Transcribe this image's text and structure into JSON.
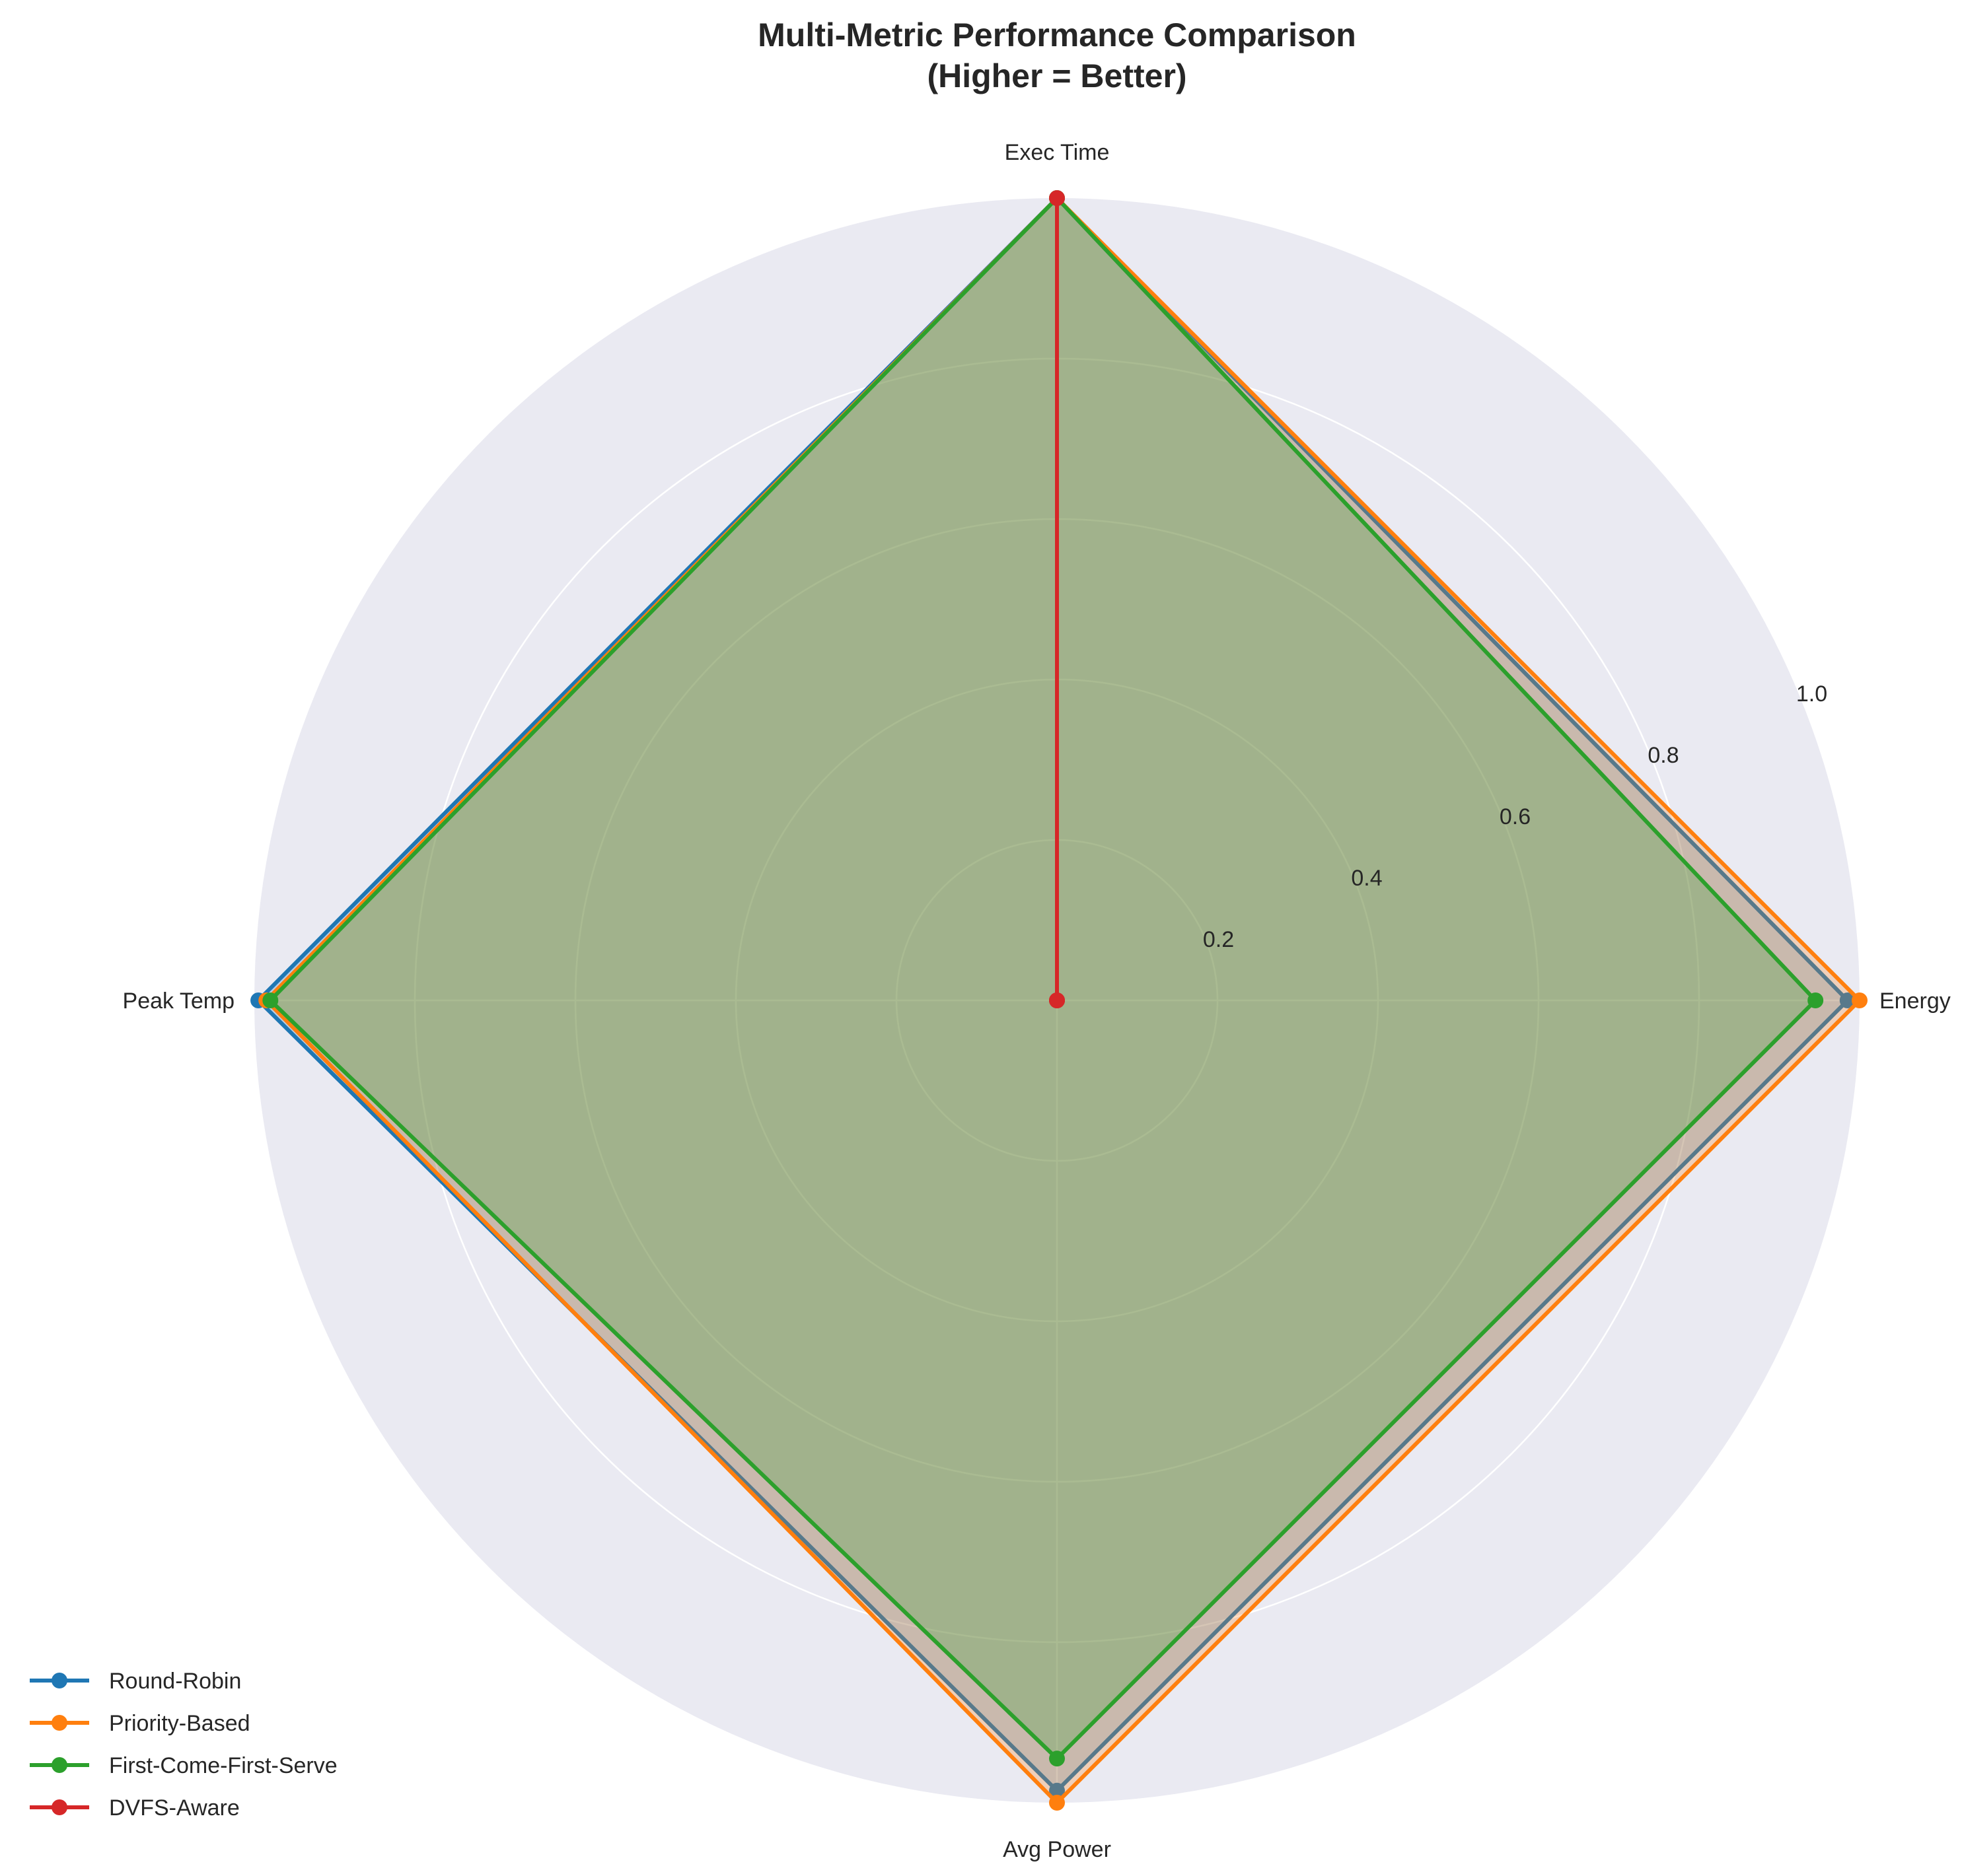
{
  "chart_data": {
    "type": "radar",
    "title": "Multi-Metric Performance Comparison",
    "subtitle": "(Higher = Better)",
    "axes": [
      "Exec Time",
      "Energy",
      "Avg Power",
      "Peak Temp"
    ],
    "rlim": [
      0,
      1.0
    ],
    "rticks": [
      0.2,
      0.4,
      0.6,
      0.8,
      1.0
    ],
    "rtick_labels": [
      "0.2",
      "0.4",
      "0.6",
      "0.8",
      "1.0"
    ],
    "grid": true,
    "legend_position": "lower-left",
    "series": [
      {
        "name": "Round-Robin",
        "color": "#1f77b4",
        "values": [
          1.0,
          0.985,
          0.985,
          0.995
        ]
      },
      {
        "name": "Priority-Based",
        "color": "#ff7f0e",
        "values": [
          1.0,
          1.0,
          1.0,
          0.985
        ]
      },
      {
        "name": "First-Come-First-Serve",
        "color": "#2ca02c",
        "values": [
          1.0,
          0.945,
          0.945,
          0.98
        ]
      },
      {
        "name": "DVFS-Aware",
        "color": "#d62728",
        "values": [
          1.0,
          0.0,
          0.0,
          0.0
        ]
      }
    ]
  }
}
